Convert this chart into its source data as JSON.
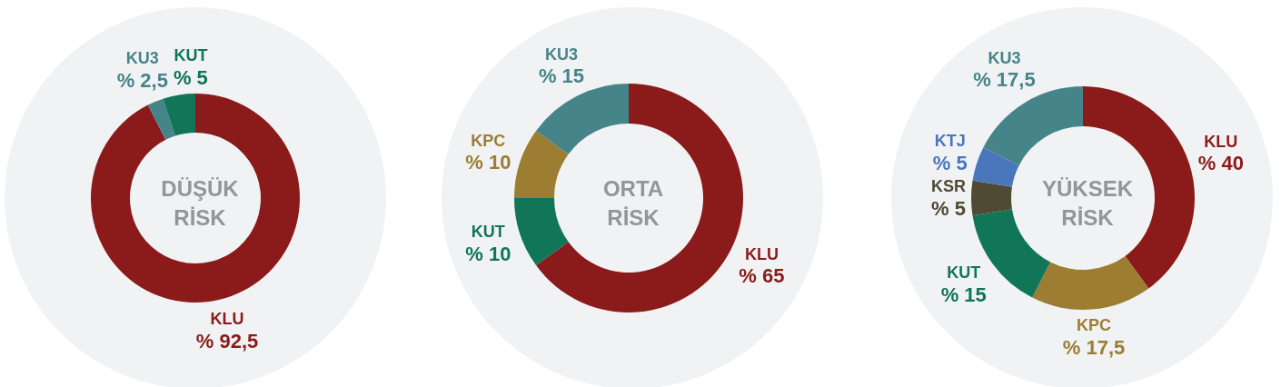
{
  "chart_data": [
    {
      "type": "donut",
      "title": "DÜŞÜK RİSK",
      "categories": [
        "KLU",
        "KU3",
        "KUT"
      ],
      "values": [
        92.5,
        2.5,
        5
      ],
      "colors": [
        "#8b1a1a",
        "#45858a",
        "#107657"
      ],
      "value_labels": [
        "% 92,5",
        "% 2,5",
        "% 5"
      ]
    },
    {
      "type": "donut",
      "title": "ORTA RİSK",
      "categories": [
        "KLU",
        "KUT",
        "KPC",
        "KU3"
      ],
      "values": [
        65,
        10,
        10,
        15
      ],
      "colors": [
        "#8b1a1a",
        "#107657",
        "#9c7d32",
        "#45858a"
      ],
      "value_labels": [
        "% 65",
        "% 10",
        "% 10",
        "% 15"
      ]
    },
    {
      "type": "donut",
      "title": "YÜKSEK RİSK",
      "categories": [
        "KLU",
        "KPC",
        "KUT",
        "KSR",
        "KTJ",
        "KU3"
      ],
      "values": [
        40,
        17.5,
        15,
        5,
        5,
        17.5
      ],
      "colors": [
        "#8b1a1a",
        "#9c7d32",
        "#107657",
        "#4f4a33",
        "#4a76bb",
        "#45858a"
      ],
      "value_labels": [
        "% 40",
        "% 17,5",
        "% 15",
        "% 5",
        "% 5",
        "% 17,5"
      ]
    }
  ]
}
